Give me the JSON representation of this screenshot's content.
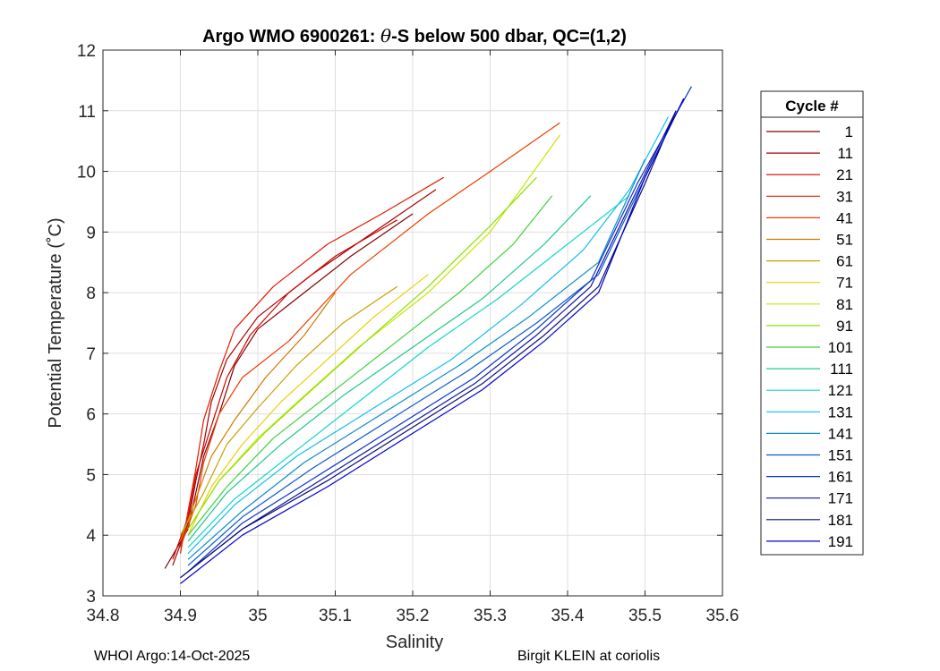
{
  "footer": {
    "left": "WHOI Argo:14-Oct-2025",
    "right": "Birgit KLEIN at coriolis"
  },
  "chart_data": {
    "type": "line",
    "title": "Argo WMO 6900261: θ-S below 500 dbar,  QC=(1,2)",
    "title_parts": {
      "pre": "Argo WMO 6900261: ",
      "symbol": "θ",
      "post": "-S below 500 dbar,  QC=(1,2)"
    },
    "xlabel": "Salinity",
    "ylabel": "Potential Temperature (˚C)",
    "xlim": [
      34.8,
      35.6
    ],
    "ylim": [
      3,
      12
    ],
    "xticks": [
      "34.8",
      "34.9",
      "35",
      "35.1",
      "35.2",
      "35.3",
      "35.4",
      "35.5",
      "35.6"
    ],
    "yticks": [
      "3",
      "4",
      "5",
      "6",
      "7",
      "8",
      "9",
      "10",
      "11",
      "12"
    ],
    "grid": true,
    "legend": {
      "title": "Cycle #",
      "placement": "right, outside axes"
    },
    "series": [
      {
        "name": "1",
        "color": "#7f0000",
        "points": [
          [
            34.88,
            3.45
          ],
          [
            34.91,
            4.1
          ],
          [
            34.92,
            4.7
          ],
          [
            34.93,
            5.3
          ],
          [
            34.95,
            6.0
          ],
          [
            34.97,
            6.8
          ],
          [
            35.0,
            7.4
          ],
          [
            35.05,
            7.9
          ],
          [
            35.12,
            8.6
          ],
          [
            35.2,
            9.3
          ]
        ]
      },
      {
        "name": "11",
        "color": "#a50000",
        "points": [
          [
            34.89,
            3.5
          ],
          [
            34.91,
            4.2
          ],
          [
            34.92,
            4.9
          ],
          [
            34.93,
            5.5
          ],
          [
            34.94,
            6.2
          ],
          [
            34.96,
            6.9
          ],
          [
            35.0,
            7.6
          ],
          [
            35.07,
            8.3
          ],
          [
            35.15,
            9.0
          ],
          [
            35.23,
            9.7
          ]
        ]
      },
      {
        "name": "21",
        "color": "#cc0000",
        "points": [
          [
            34.89,
            3.6
          ],
          [
            34.91,
            4.3
          ],
          [
            34.92,
            5.0
          ],
          [
            34.94,
            5.8
          ],
          [
            34.96,
            6.6
          ],
          [
            34.99,
            7.3
          ],
          [
            35.04,
            8.0
          ],
          [
            35.1,
            8.6
          ],
          [
            35.18,
            9.2
          ]
        ]
      },
      {
        "name": "31",
        "color": "#e31a00",
        "points": [
          [
            34.9,
            3.7
          ],
          [
            34.91,
            4.4
          ],
          [
            34.92,
            5.1
          ],
          [
            34.93,
            5.9
          ],
          [
            34.95,
            6.7
          ],
          [
            34.97,
            7.4
          ],
          [
            35.02,
            8.1
          ],
          [
            35.09,
            8.8
          ],
          [
            35.16,
            9.3
          ],
          [
            35.24,
            9.9
          ]
        ]
      },
      {
        "name": "41",
        "color": "#f03c00",
        "points": [
          [
            34.9,
            3.8
          ],
          [
            34.92,
            4.5
          ],
          [
            34.93,
            5.2
          ],
          [
            34.95,
            6.0
          ],
          [
            34.98,
            6.6
          ],
          [
            35.04,
            7.2
          ],
          [
            35.12,
            8.3
          ],
          [
            35.22,
            9.3
          ],
          [
            35.3,
            10.0
          ],
          [
            35.39,
            10.8
          ]
        ]
      },
      {
        "name": "51",
        "color": "#d07a00",
        "points": [
          [
            34.9,
            3.9
          ],
          [
            34.92,
            4.6
          ],
          [
            34.94,
            5.3
          ],
          [
            34.97,
            5.9
          ],
          [
            35.01,
            6.6
          ],
          [
            35.06,
            7.3
          ],
          [
            35.1,
            8.0
          ]
        ]
      },
      {
        "name": "61",
        "color": "#c8a000",
        "points": [
          [
            34.9,
            4.0
          ],
          [
            34.93,
            4.7
          ],
          [
            34.96,
            5.5
          ],
          [
            35.0,
            6.1
          ],
          [
            35.05,
            6.8
          ],
          [
            35.11,
            7.5
          ],
          [
            35.18,
            8.1
          ]
        ]
      },
      {
        "name": "71",
        "color": "#e6d200",
        "points": [
          [
            34.91,
            4.0
          ],
          [
            34.94,
            4.8
          ],
          [
            34.98,
            5.5
          ],
          [
            35.03,
            6.2
          ],
          [
            35.09,
            6.9
          ],
          [
            35.15,
            7.6
          ],
          [
            35.22,
            8.3
          ]
        ]
      },
      {
        "name": "81",
        "color": "#c8e600",
        "points": [
          [
            34.91,
            4.1
          ],
          [
            34.95,
            4.9
          ],
          [
            35.0,
            5.6
          ],
          [
            35.06,
            6.3
          ],
          [
            35.13,
            7.1
          ],
          [
            35.22,
            8.0
          ],
          [
            35.3,
            9.0
          ],
          [
            35.39,
            10.6
          ]
        ]
      },
      {
        "name": "91",
        "color": "#8ce100",
        "points": [
          [
            34.91,
            4.1
          ],
          [
            34.95,
            4.9
          ],
          [
            35.01,
            5.7
          ],
          [
            35.07,
            6.4
          ],
          [
            35.14,
            7.2
          ],
          [
            35.22,
            8.1
          ],
          [
            35.3,
            9.1
          ],
          [
            35.36,
            9.9
          ]
        ]
      },
      {
        "name": "101",
        "color": "#3cd23c",
        "points": [
          [
            34.91,
            4.0
          ],
          [
            34.96,
            4.8
          ],
          [
            35.02,
            5.6
          ],
          [
            35.1,
            6.4
          ],
          [
            35.18,
            7.2
          ],
          [
            35.26,
            8.0
          ],
          [
            35.33,
            8.8
          ],
          [
            35.38,
            9.6
          ]
        ]
      },
      {
        "name": "111",
        "color": "#1ec88c",
        "points": [
          [
            34.91,
            3.9
          ],
          [
            34.96,
            4.7
          ],
          [
            35.03,
            5.5
          ],
          [
            35.11,
            6.3
          ],
          [
            35.2,
            7.1
          ],
          [
            35.29,
            7.9
          ],
          [
            35.37,
            8.8
          ],
          [
            35.43,
            9.6
          ]
        ]
      },
      {
        "name": "121",
        "color": "#14d7c8",
        "points": [
          [
            34.91,
            3.8
          ],
          [
            34.97,
            4.6
          ],
          [
            35.05,
            5.4
          ],
          [
            35.13,
            6.2
          ],
          [
            35.22,
            7.1
          ],
          [
            35.31,
            7.9
          ],
          [
            35.4,
            8.8
          ],
          [
            35.48,
            9.6
          ]
        ]
      },
      {
        "name": "131",
        "color": "#14beeb",
        "points": [
          [
            34.91,
            3.7
          ],
          [
            34.97,
            4.5
          ],
          [
            35.05,
            5.3
          ],
          [
            35.15,
            6.1
          ],
          [
            35.25,
            6.9
          ],
          [
            35.34,
            7.8
          ],
          [
            35.42,
            8.7
          ],
          [
            35.48,
            9.7
          ],
          [
            35.53,
            10.9
          ]
        ]
      },
      {
        "name": "141",
        "color": "#0a8cc8",
        "points": [
          [
            34.91,
            3.6
          ],
          [
            34.98,
            4.4
          ],
          [
            35.06,
            5.2
          ],
          [
            35.16,
            6.0
          ],
          [
            35.26,
            6.8
          ],
          [
            35.35,
            7.6
          ],
          [
            35.44,
            8.5
          ],
          [
            35.5,
            10.2
          ]
        ]
      },
      {
        "name": "151",
        "color": "#0a5ad2",
        "points": [
          [
            34.91,
            3.5
          ],
          [
            34.98,
            4.3
          ],
          [
            35.07,
            5.1
          ],
          [
            35.17,
            5.9
          ],
          [
            35.27,
            6.7
          ],
          [
            35.36,
            7.5
          ],
          [
            35.44,
            8.3
          ],
          [
            35.5,
            9.9
          ],
          [
            35.55,
            11.2
          ]
        ]
      },
      {
        "name": "161",
        "color": "#0a32c8",
        "points": [
          [
            34.91,
            3.4
          ],
          [
            34.98,
            4.2
          ],
          [
            35.08,
            5.0
          ],
          [
            35.18,
            5.8
          ],
          [
            35.28,
            6.6
          ],
          [
            35.36,
            7.4
          ],
          [
            35.43,
            8.2
          ],
          [
            35.49,
            9.8
          ],
          [
            35.56,
            11.4
          ]
        ]
      },
      {
        "name": "171",
        "color": "#0a14a0",
        "points": [
          [
            34.9,
            3.3
          ],
          [
            34.98,
            4.1
          ],
          [
            35.08,
            4.9
          ],
          [
            35.18,
            5.7
          ],
          [
            35.28,
            6.5
          ],
          [
            35.36,
            7.3
          ],
          [
            35.43,
            8.1
          ],
          [
            35.49,
            9.7
          ],
          [
            35.54,
            11.0
          ]
        ]
      },
      {
        "name": "181",
        "color": "#0a0a78",
        "points": [
          [
            34.9,
            3.3
          ],
          [
            34.98,
            4.1
          ],
          [
            35.09,
            4.9
          ],
          [
            35.19,
            5.7
          ],
          [
            35.29,
            6.5
          ],
          [
            35.37,
            7.3
          ],
          [
            35.44,
            8.1
          ],
          [
            35.5,
            9.8
          ],
          [
            35.54,
            11.0
          ]
        ]
      },
      {
        "name": "191",
        "color": "#0000c8",
        "points": [
          [
            34.9,
            3.2
          ],
          [
            34.98,
            4.0
          ],
          [
            35.09,
            4.8
          ],
          [
            35.19,
            5.6
          ],
          [
            35.29,
            6.4
          ],
          [
            35.37,
            7.2
          ],
          [
            35.44,
            8.0
          ],
          [
            35.5,
            9.9
          ],
          [
            35.55,
            11.2
          ]
        ]
      }
    ]
  }
}
